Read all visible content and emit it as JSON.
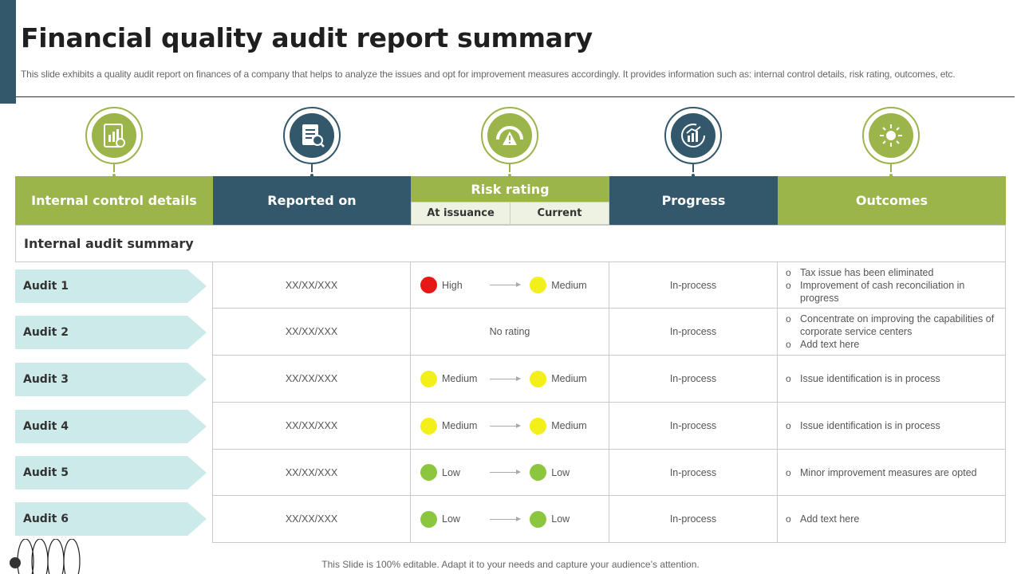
{
  "header": {
    "title": "Financial quality audit report summary",
    "subtitle": "This slide exhibits a quality audit report on finances of a company that helps to analyze the issues and opt for improvement measures accordingly. It provides information such as: internal control details, risk rating, outcomes, etc."
  },
  "colors": {
    "green": "#9bb54a",
    "blue": "#33586b",
    "red": "#e81818",
    "yellow": "#f2ef1a",
    "lightgreen": "#8cc63e",
    "tag": "#cdeaea"
  },
  "icons": [
    "report-chart-icon",
    "document-search-icon",
    "risk-gauge-icon",
    "progress-chart-icon",
    "outcome-sun-icon"
  ],
  "columns": {
    "internal_control": "Internal control details",
    "reported_on": "Reported on",
    "risk_rating": "Risk rating",
    "at_issuance": "At issuance",
    "current": "Current",
    "progress": "Progress",
    "outcomes": "Outcomes"
  },
  "summary_label": "Internal audit summary",
  "audits": [
    {
      "name": "Audit 1",
      "date": "XX/XX/XXX",
      "risk_from": "High",
      "risk_from_color": "#e81818",
      "risk_to": "Medium",
      "risk_to_color": "#f2ef1a",
      "progress": "In-process",
      "outcomes": [
        "Tax issue has been eliminated",
        "Improvement  of cash reconciliation in progress"
      ]
    },
    {
      "name": "Audit 2",
      "date": "XX/XX/XXX",
      "no_rating": "No rating",
      "progress": "In-process",
      "outcomes": [
        "Concentrate on improving the capabilities of corporate service centers",
        "Add text here"
      ]
    },
    {
      "name": "Audit 3",
      "date": "XX/XX/XXX",
      "risk_from": "Medium",
      "risk_from_color": "#f2ef1a",
      "risk_to": "Medium",
      "risk_to_color": "#f2ef1a",
      "progress": "In-process",
      "outcomes": [
        "Issue identification  is in process"
      ]
    },
    {
      "name": "Audit 4",
      "date": "XX/XX/XXX",
      "risk_from": "Medium",
      "risk_from_color": "#f2ef1a",
      "risk_to": "Medium",
      "risk_to_color": "#f2ef1a",
      "progress": "In-process",
      "outcomes": [
        "Issue identification  is in process"
      ]
    },
    {
      "name": "Audit 5",
      "date": "XX/XX/XXX",
      "risk_from": "Low",
      "risk_from_color": "#8cc63e",
      "risk_to": "Low",
      "risk_to_color": "#8cc63e",
      "progress": "In-process",
      "outcomes": [
        "Minor improvement  measures are opted"
      ]
    },
    {
      "name": "Audit 6",
      "date": "XX/XX/XXX",
      "risk_from": "Low",
      "risk_from_color": "#8cc63e",
      "risk_to": "Low",
      "risk_to_color": "#8cc63e",
      "progress": "In-process",
      "outcomes": [
        "Add text here"
      ]
    }
  ],
  "footer": "This Slide is 100% editable. Adapt it to your needs and capture your audience’s attention."
}
